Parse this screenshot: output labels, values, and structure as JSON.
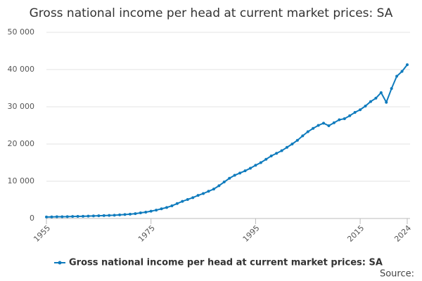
{
  "chart_data": {
    "type": "line",
    "title": "Gross national income per head at current market prices: SA",
    "x": [
      1955,
      1956,
      1957,
      1958,
      1959,
      1960,
      1961,
      1962,
      1963,
      1964,
      1965,
      1966,
      1967,
      1968,
      1969,
      1970,
      1971,
      1972,
      1973,
      1974,
      1975,
      1976,
      1977,
      1978,
      1979,
      1980,
      1981,
      1982,
      1983,
      1984,
      1985,
      1986,
      1987,
      1988,
      1989,
      1990,
      1991,
      1992,
      1993,
      1994,
      1995,
      1996,
      1997,
      1998,
      1999,
      2000,
      2001,
      2002,
      2003,
      2004,
      2005,
      2006,
      2007,
      2008,
      2009,
      2010,
      2011,
      2012,
      2013,
      2014,
      2015,
      2016,
      2017,
      2018,
      2019,
      2020,
      2021,
      2022,
      2023,
      2024
    ],
    "series": [
      {
        "name": "Gross national income per head at current market prices: SA",
        "color": "#0f7bbd",
        "values": [
          400,
          430,
          460,
          480,
          500,
          540,
          570,
          600,
          640,
          690,
          730,
          770,
          820,
          880,
          960,
          1050,
          1150,
          1300,
          1500,
          1700,
          1950,
          2250,
          2600,
          2950,
          3400,
          4000,
          4600,
          5100,
          5600,
          6200,
          6700,
          7300,
          7900,
          8800,
          9800,
          10800,
          11600,
          12200,
          12800,
          13500,
          14300,
          15000,
          15900,
          16800,
          17500,
          18200,
          19100,
          20000,
          21000,
          22200,
          23300,
          24200,
          25000,
          25600,
          24900,
          25700,
          26500,
          26800,
          27600,
          28500,
          29200,
          30200,
          31400,
          32300,
          33800,
          31200,
          34900,
          38200,
          39500,
          41300
        ]
      }
    ],
    "xlim": [
      1955,
      2024
    ],
    "xticks": [
      1955,
      1975,
      1995,
      2015,
      2024
    ],
    "ylim": [
      0,
      50000
    ],
    "yticks": [
      0,
      {
        "value": 10000,
        "label": "10 000"
      },
      {
        "value": 20000,
        "label": "20 000"
      },
      {
        "value": 30000,
        "label": "30 000"
      },
      {
        "value": 40000,
        "label": "40 000"
      },
      {
        "value": 50000,
        "label": "50 000"
      }
    ],
    "grid": true,
    "legend": "bottom",
    "source": "Source:"
  }
}
